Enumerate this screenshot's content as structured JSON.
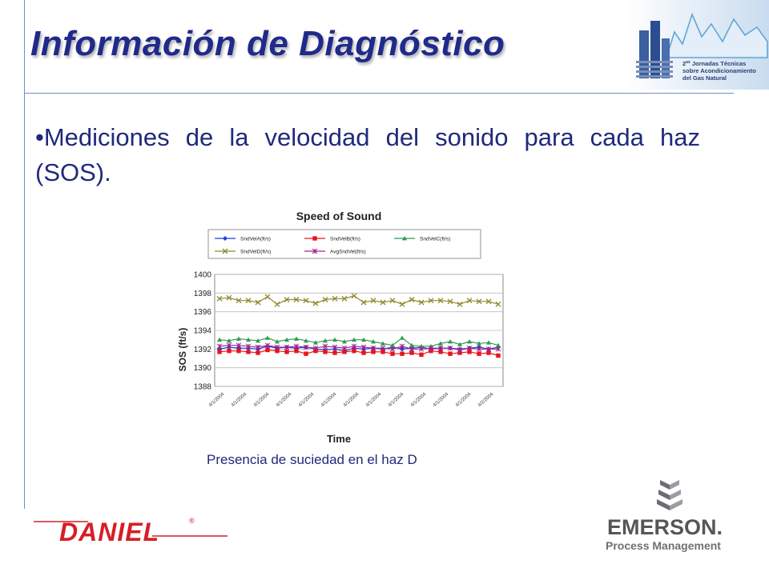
{
  "slide": {
    "title": "Información de Diagnóstico",
    "bullet": "•Mediciones de la velocidad del sonido para cada haz (SOS).",
    "caption": "Presencia de suciedad en el haz D"
  },
  "logos": {
    "top_right": {
      "line1": "2",
      "line1_sup": "as",
      "line1_rest": " Jornadas Técnicas",
      "line2": "sobre Acondicionamiento",
      "line3": "del Gas Natural"
    },
    "daniel": {
      "text": "DANIEL",
      "mark": "®",
      "color": "#d51f26"
    },
    "emerson": {
      "name": "EMERSON.",
      "sub": "Process Management",
      "color": "#54565a"
    }
  },
  "chart_data": {
    "type": "line",
    "title": "Speed of Sound",
    "xlabel": "Time",
    "ylabel": "SOS (ft/s)",
    "ylim": [
      1388,
      1400
    ],
    "yticks": [
      1388,
      1390,
      1392,
      1394,
      1396,
      1398,
      1400
    ],
    "grid": true,
    "legend_position": "top",
    "x_tick_labels": [
      "4/1/2004",
      "4/1/2004",
      "4/1/2004",
      "4/1/2004",
      "4/1/2004",
      "4/1/2004",
      "4/1/2004",
      "4/1/2004",
      "4/1/2004",
      "4/1/2004",
      "4/1/2004",
      "4/1/2004",
      "4/2/2004"
    ],
    "series": [
      {
        "name": "SndVelA(ft/s)",
        "color": "#1f3fd6",
        "marker": "diamond",
        "values": [
          1392.0,
          1392.2,
          1392.1,
          1392.1,
          1392.0,
          1392.3,
          1392.1,
          1392.2,
          1392.1,
          1392.2,
          1392.0,
          1391.9,
          1392.0,
          1391.8,
          1392.1,
          1392.0,
          1392.1,
          1392.0,
          1392.2,
          1392.0,
          1392.1,
          1392.2,
          1392.0,
          1392.1,
          1392.1,
          1392.0,
          1392.1,
          1392.2,
          1392.0,
          1392.2
        ]
      },
      {
        "name": "SndVelB(ft/s)",
        "color": "#e8141c",
        "marker": "square",
        "values": [
          1391.7,
          1391.8,
          1391.8,
          1391.7,
          1391.6,
          1391.9,
          1391.8,
          1391.7,
          1391.8,
          1391.5,
          1391.8,
          1391.7,
          1391.6,
          1391.7,
          1391.8,
          1391.6,
          1391.7,
          1391.7,
          1391.5,
          1391.5,
          1391.6,
          1391.4,
          1391.8,
          1391.7,
          1391.5,
          1391.6,
          1391.7,
          1391.5,
          1391.6,
          1391.3
        ]
      },
      {
        "name": "SndVelC(ft/s)",
        "color": "#2f9c4e",
        "marker": "triangle",
        "values": [
          1393.0,
          1392.9,
          1393.1,
          1393.0,
          1392.9,
          1393.2,
          1392.8,
          1393.0,
          1393.1,
          1392.9,
          1392.7,
          1392.9,
          1393.0,
          1392.8,
          1393.0,
          1393.0,
          1392.8,
          1392.6,
          1392.4,
          1393.2,
          1392.4,
          1392.3,
          1392.3,
          1392.6,
          1392.8,
          1392.5,
          1392.8,
          1392.6,
          1392.7,
          1392.4
        ]
      },
      {
        "name": "SndVelD(ft/s)",
        "color": "#8f8a2a",
        "marker": "x",
        "values": [
          1397.4,
          1397.5,
          1397.2,
          1397.2,
          1397.0,
          1397.6,
          1396.8,
          1397.3,
          1397.3,
          1397.2,
          1396.9,
          1397.3,
          1397.4,
          1397.4,
          1397.7,
          1397.0,
          1397.2,
          1397.0,
          1397.2,
          1396.8,
          1397.3,
          1397.0,
          1397.2,
          1397.2,
          1397.1,
          1396.8,
          1397.2,
          1397.1,
          1397.1,
          1396.8
        ]
      },
      {
        "name": "AvgSndVel(ft/s)",
        "color": "#a0208f",
        "marker": "star",
        "values": [
          1392.3,
          1392.4,
          1392.4,
          1392.3,
          1392.2,
          1392.4,
          1392.2,
          1392.2,
          1392.3,
          1392.2,
          1392.1,
          1392.3,
          1392.2,
          1392.1,
          1392.3,
          1392.2,
          1392.1,
          1392.1,
          1392.0,
          1392.3,
          1392.0,
          1392.0,
          1392.1,
          1392.1,
          1392.1,
          1391.9,
          1392.1,
          1392.0,
          1392.0,
          1392.0
        ]
      }
    ]
  }
}
